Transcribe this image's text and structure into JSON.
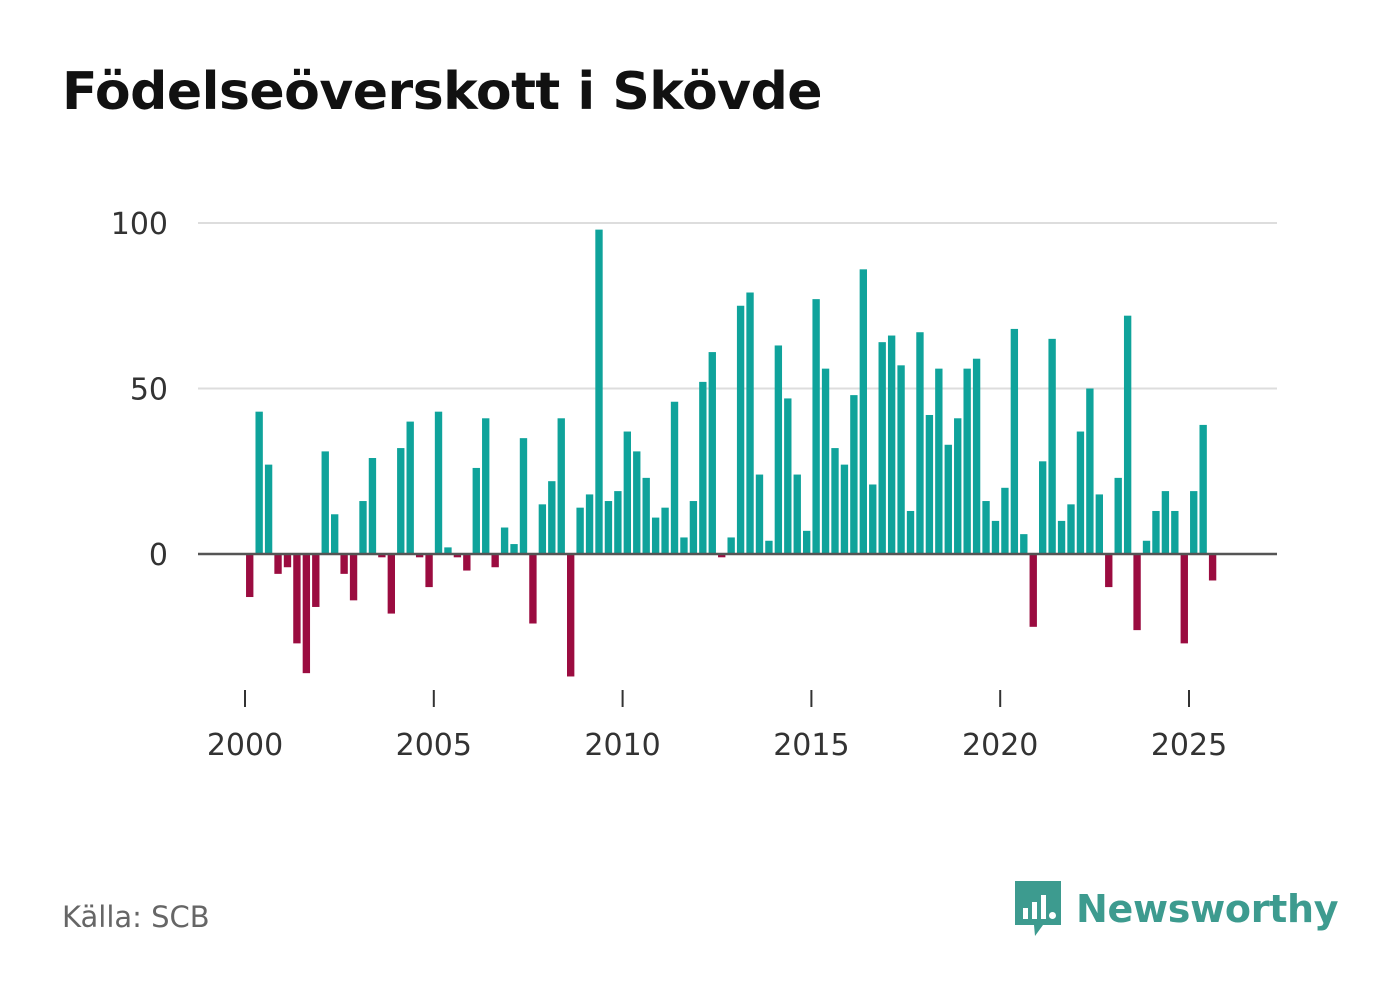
{
  "title": "Födelseöverskott i Skövde",
  "source": "Källa: SCB",
  "brand": {
    "name": "Newsworthy",
    "icon": "newsworthy-logo-icon",
    "color": "#3d9b8f"
  },
  "colors": {
    "positive": "#0fa39b",
    "negative": "#9b0c40",
    "grid": "#dddddd",
    "zero_line": "#555555"
  },
  "chart_data": {
    "type": "bar",
    "title": "Födelseöverskott i Skövde",
    "xlabel": "",
    "ylabel": "",
    "frequency": "quarterly",
    "start_year": 2000,
    "start_quarter": 1,
    "ylim": [
      -45,
      100
    ],
    "xlim": [
      2000,
      2027
    ],
    "y_ticks": [
      0,
      50,
      100
    ],
    "x_ticks": [
      2000,
      2005,
      2010,
      2015,
      2020,
      2025
    ],
    "grid": true,
    "values": [
      -13,
      43,
      27,
      -6,
      -4,
      -27,
      -36,
      -16,
      31,
      12,
      -6,
      -14,
      16,
      29,
      -1,
      -18,
      32,
      40,
      -1,
      -10,
      43,
      2,
      -1,
      -5,
      26,
      41,
      -4,
      8,
      3,
      35,
      -21,
      15,
      22,
      41,
      -37,
      14,
      18,
      98,
      16,
      19,
      37,
      31,
      23,
      11,
      14,
      46,
      5,
      16,
      52,
      61,
      -1,
      5,
      75,
      79,
      24,
      4,
      63,
      47,
      24,
      7,
      77,
      56,
      32,
      27,
      48,
      86,
      21,
      64,
      66,
      57,
      13,
      67,
      42,
      56,
      33,
      41,
      56,
      59,
      16,
      10,
      20,
      68,
      6,
      -22,
      28,
      65,
      10,
      15,
      37,
      50,
      18,
      -10,
      23,
      72,
      -23,
      4,
      13,
      19,
      13,
      -27,
      19,
      39,
      -8
    ]
  }
}
